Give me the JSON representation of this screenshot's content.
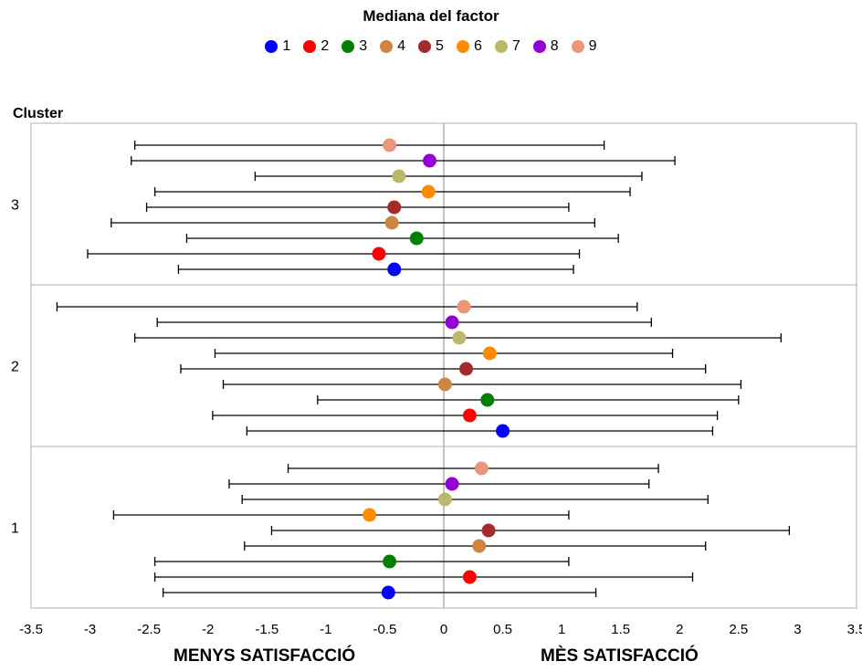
{
  "legend": {
    "title": "Mediana del factor",
    "items": [
      {
        "label": "1",
        "color": "#0000ff"
      },
      {
        "label": "2",
        "color": "#ff0000"
      },
      {
        "label": "3",
        "color": "#008000"
      },
      {
        "label": "4",
        "color": "#cd853f"
      },
      {
        "label": "5",
        "color": "#a52a2a"
      },
      {
        "label": "6",
        "color": "#ff8c00"
      },
      {
        "label": "7",
        "color": "#bdb76b"
      },
      {
        "label": "8",
        "color": "#9400d3"
      },
      {
        "label": "9",
        "color": "#e9967a"
      }
    ]
  },
  "axis": {
    "y_heading": "Cluster",
    "left_label": "MENYS SATISFACCIÓ",
    "right_label": "MÈS SATISFACCIÓ"
  },
  "chart_data": {
    "type": "scatter",
    "title": "Mediana del factor",
    "xlim": [
      -3.5,
      3.5
    ],
    "xticks": [
      "-3.5",
      "-3",
      "-2.5",
      "-2",
      "-1.5",
      "-1",
      "-0.5",
      "0",
      "0.5",
      "1",
      "1.5",
      "2",
      "2.5",
      "3",
      "3.5"
    ],
    "clusters": [
      {
        "label": "3",
        "points": [
          {
            "factor": "1",
            "median": -0.42,
            "low": -2.25,
            "high": 1.1
          },
          {
            "factor": "2",
            "median": -0.55,
            "low": -3.02,
            "high": 1.15
          },
          {
            "factor": "3",
            "median": -0.23,
            "low": -2.18,
            "high": 1.48
          },
          {
            "factor": "4",
            "median": -0.44,
            "low": -2.82,
            "high": 1.28
          },
          {
            "factor": "5",
            "median": -0.42,
            "low": -2.52,
            "high": 1.06
          },
          {
            "factor": "6",
            "median": -0.13,
            "low": -2.45,
            "high": 1.58
          },
          {
            "factor": "7",
            "median": -0.38,
            "low": -1.6,
            "high": 1.68
          },
          {
            "factor": "8",
            "median": -0.12,
            "low": -2.65,
            "high": 1.96
          },
          {
            "factor": "9",
            "median": -0.46,
            "low": -2.62,
            "high": 1.36
          }
        ]
      },
      {
        "label": "2",
        "points": [
          {
            "factor": "1",
            "median": 0.5,
            "low": -1.67,
            "high": 2.28
          },
          {
            "factor": "2",
            "median": 0.22,
            "low": -1.96,
            "high": 2.32
          },
          {
            "factor": "3",
            "median": 0.37,
            "low": -1.07,
            "high": 2.5
          },
          {
            "factor": "4",
            "median": 0.01,
            "low": -1.87,
            "high": 2.52
          },
          {
            "factor": "5",
            "median": 0.19,
            "low": -2.23,
            "high": 2.22
          },
          {
            "factor": "6",
            "median": 0.39,
            "low": -1.94,
            "high": 1.94
          },
          {
            "factor": "7",
            "median": 0.13,
            "low": -2.62,
            "high": 2.86
          },
          {
            "factor": "8",
            "median": 0.07,
            "low": -2.43,
            "high": 1.76
          },
          {
            "factor": "9",
            "median": 0.17,
            "low": -3.28,
            "high": 1.64
          }
        ]
      },
      {
        "label": "1",
        "points": [
          {
            "factor": "1",
            "median": -0.47,
            "low": -2.38,
            "high": 1.29
          },
          {
            "factor": "2",
            "median": 0.22,
            "low": -2.45,
            "high": 2.11
          },
          {
            "factor": "3",
            "median": -0.46,
            "low": -2.45,
            "high": 1.06
          },
          {
            "factor": "4",
            "median": 0.3,
            "low": -1.69,
            "high": 2.22
          },
          {
            "factor": "5",
            "median": 0.38,
            "low": -1.46,
            "high": 2.93
          },
          {
            "factor": "6",
            "median": -0.63,
            "low": -2.8,
            "high": 1.06
          },
          {
            "factor": "7",
            "median": 0.01,
            "low": -1.71,
            "high": 2.24
          },
          {
            "factor": "8",
            "median": 0.07,
            "low": -1.82,
            "high": 1.74
          },
          {
            "factor": "9",
            "median": 0.32,
            "low": -1.32,
            "high": 1.82
          }
        ]
      }
    ]
  }
}
